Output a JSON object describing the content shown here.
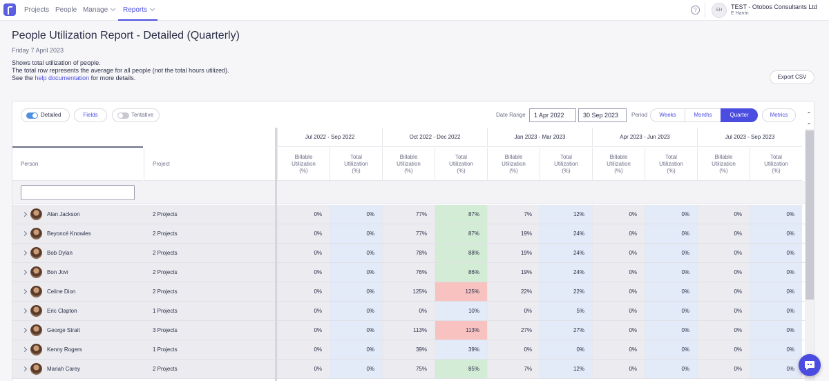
{
  "nav": {
    "items": [
      "Projects",
      "People",
      "Manage",
      "Reports"
    ],
    "help": "?",
    "account": {
      "initials": "EH",
      "company": "TEST - Otobos Consultants Ltd",
      "user": "E Harrin"
    }
  },
  "header": {
    "title": "People Utilization Report - Detailed (Quarterly)",
    "date": "Friday 7 April 2023",
    "desc_line1": "Shows total utilization of people.",
    "desc_line2": "The total row represents the average for all people (not the total hours utilized).",
    "desc_see": "See the ",
    "desc_link": "help documentation",
    "desc_after": " for more details.",
    "export_label": "Export CSV"
  },
  "toolbar": {
    "detailed_label": "Detailed",
    "fields_label": "Fields",
    "tentative_label": "Tentative",
    "date_range_label": "Date Range",
    "date_from": "1 Apr 2022",
    "date_to": "30 Sep 2023",
    "period_label": "Period",
    "period_options": [
      "Weeks",
      "Months",
      "Quarter"
    ],
    "selected_period": "Quarter",
    "metrics_label": "Metrics"
  },
  "table": {
    "quarters": [
      "Jul 2022 - Sep 2022",
      "Oct 2022 - Dec 2022",
      "Jan 2023 - Mar 2023",
      "Apr 2023 - Jun 2023",
      "Jul 2023 - Sep 2023"
    ],
    "person_header": "Person",
    "project_header": "Project",
    "billable_header": [
      "Billable",
      "Utilization",
      "(%)"
    ],
    "total_header": [
      "Total",
      "Utilization",
      "(%)"
    ],
    "colors": {
      "over_100": "#f7c2c0",
      "high": "#d3ecd5"
    },
    "rows": [
      {
        "name": "Alan Jackson",
        "projects": "2 Projects",
        "values": [
          "0%",
          "0%",
          "77%",
          "87%",
          "7%",
          "12%",
          "0%",
          "0%",
          "0%",
          "0%"
        ],
        "highlight": "green"
      },
      {
        "name": "Beyoncé Knowles",
        "projects": "2 Projects",
        "values": [
          "0%",
          "0%",
          "77%",
          "87%",
          "19%",
          "24%",
          "0%",
          "0%",
          "0%",
          "0%"
        ],
        "highlight": "green"
      },
      {
        "name": "Bob Dylan",
        "projects": "2 Projects",
        "values": [
          "0%",
          "0%",
          "78%",
          "88%",
          "19%",
          "24%",
          "0%",
          "0%",
          "0%",
          "0%"
        ],
        "highlight": "green"
      },
      {
        "name": "Bon Jovi",
        "projects": "2 Projects",
        "values": [
          "0%",
          "0%",
          "76%",
          "86%",
          "19%",
          "24%",
          "0%",
          "0%",
          "0%",
          "0%"
        ],
        "highlight": "green"
      },
      {
        "name": "Celine Dion",
        "projects": "2 Projects",
        "values": [
          "0%",
          "0%",
          "125%",
          "125%",
          "22%",
          "22%",
          "0%",
          "0%",
          "0%",
          "0%"
        ],
        "highlight": "red"
      },
      {
        "name": "Eric Clapton",
        "projects": "1 Projects",
        "values": [
          "0%",
          "0%",
          "0%",
          "10%",
          "0%",
          "5%",
          "0%",
          "0%",
          "0%",
          "0%"
        ],
        "highlight": "none"
      },
      {
        "name": "George Strait",
        "projects": "3 Projects",
        "values": [
          "0%",
          "0%",
          "113%",
          "113%",
          "27%",
          "27%",
          "0%",
          "0%",
          "0%",
          "0%"
        ],
        "highlight": "red"
      },
      {
        "name": "Kenny Rogers",
        "projects": "1 Projects",
        "values": [
          "0%",
          "0%",
          "39%",
          "39%",
          "0%",
          "0%",
          "0%",
          "0%",
          "0%",
          "0%"
        ],
        "highlight": "none"
      },
      {
        "name": "Mariah Carey",
        "projects": "2 Projects",
        "values": [
          "0%",
          "0%",
          "75%",
          "85%",
          "7%",
          "12%",
          "0%",
          "0%",
          "0%",
          "0%"
        ],
        "highlight": "green"
      }
    ]
  }
}
